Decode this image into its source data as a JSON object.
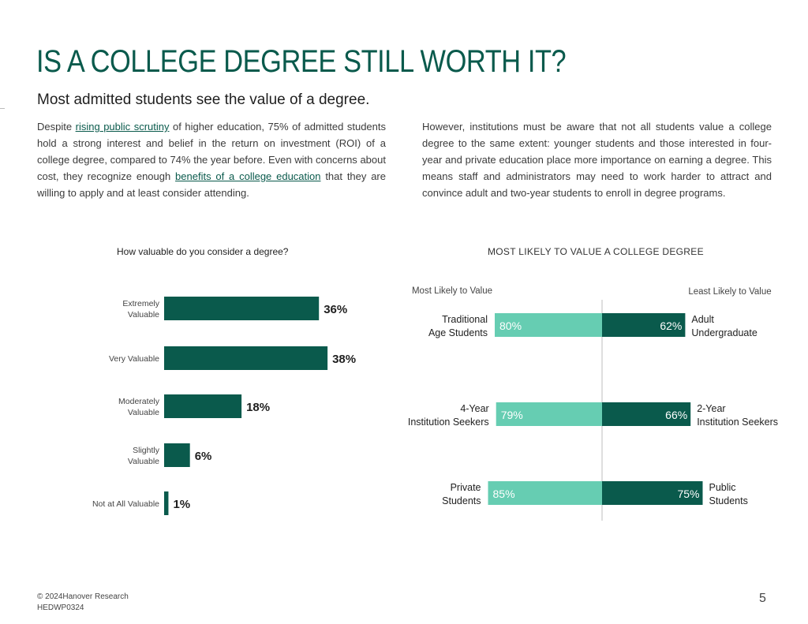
{
  "page": {
    "title": "IS A COLLEGE DEGREE STILL WORTH IT?",
    "subtitle": "Most admitted students see the value of a degree.",
    "para1": {
      "t1": "Despite ",
      "link1": "rising public scrutiny",
      "t2": " of higher education, 75% of admitted students hold a strong interest and belief in the return on investment (ROI) of a college degree, compared to 74% the year before. Even with concerns about cost, they recognize enough ",
      "link2": "benefits of a college education",
      "t3": " that they are willing to apply and at least consider attending."
    },
    "para2": "However, institutions must be aware that not all students value a college degree to the same extent: younger students and those interested in four-year and private education place more importance on earning a degree. This means staff and administrators may need to work harder to attract and convince adult and two-year students to enroll in degree programs.",
    "footer_line1": "© 2024Hanover Research",
    "footer_line2": "HEDWP0324",
    "page_number": "5"
  },
  "colors": {
    "dark": "#0a5a4c",
    "light": "#66cdb2",
    "axis": "#bdbdbd"
  },
  "chart_data": [
    {
      "type": "bar",
      "orientation": "horizontal",
      "title": "How valuable do you consider a degree?",
      "categories": [
        "Extremely Valuable",
        "Very Valuable",
        "Moderately Valuable",
        "Slightly Valuable",
        "Not at All Valuable"
      ],
      "values": [
        36,
        38,
        18,
        6,
        1
      ],
      "labels": [
        "36%",
        "38%",
        "18%",
        "6%",
        "1%"
      ],
      "unit": "%"
    },
    {
      "type": "bar",
      "orientation": "diverging",
      "title": "MOST LIKELY TO VALUE A COLLEGE DEGREE",
      "left_header": "Most Likely to Value",
      "right_header": "Least Likely to Value",
      "rows": [
        {
          "left_label": "Traditional Age Students",
          "left_value": 80,
          "left_text": "80%",
          "right_label": "Adult Undergraduate",
          "right_value": 62,
          "right_text": "62%"
        },
        {
          "left_label": "4-Year Institution Seekers",
          "left_value": 79,
          "left_text": "79%",
          "right_label": "2-Year Institution Seekers",
          "right_value": 66,
          "right_text": "66%"
        },
        {
          "left_label": "Private Students",
          "left_value": 85,
          "left_text": "85%",
          "right_label": "Public Students",
          "right_value": 75,
          "right_text": "75%"
        }
      ]
    }
  ]
}
